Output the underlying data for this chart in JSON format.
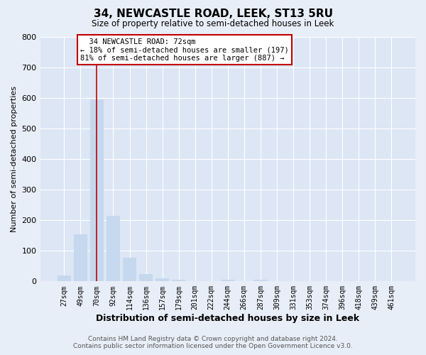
{
  "title": "34, NEWCASTLE ROAD, LEEK, ST13 5RU",
  "subtitle": "Size of property relative to semi-detached houses in Leek",
  "xlabel": "Distribution of semi-detached houses by size in Leek",
  "ylabel": "Number of semi-detached properties",
  "bar_labels": [
    "27sqm",
    "49sqm",
    "70sqm",
    "92sqm",
    "114sqm",
    "136sqm",
    "157sqm",
    "179sqm",
    "201sqm",
    "222sqm",
    "244sqm",
    "266sqm",
    "287sqm",
    "309sqm",
    "331sqm",
    "353sqm",
    "374sqm",
    "396sqm",
    "418sqm",
    "439sqm",
    "461sqm"
  ],
  "bar_values": [
    20,
    155,
    595,
    215,
    78,
    25,
    10,
    5,
    0,
    0,
    5,
    0,
    5,
    0,
    0,
    0,
    0,
    0,
    0,
    0,
    0
  ],
  "bar_color": "#c5d8ee",
  "highlight_color": "#c00000",
  "vline_index": 2,
  "annotation_title": "34 NEWCASTLE ROAD: 72sqm",
  "annotation_line1": "← 18% of semi-detached houses are smaller (197)",
  "annotation_line2": "81% of semi-detached houses are larger (887) →",
  "ylim": [
    0,
    800
  ],
  "yticks": [
    0,
    100,
    200,
    300,
    400,
    500,
    600,
    700,
    800
  ],
  "footer1": "Contains HM Land Registry data © Crown copyright and database right 2024.",
  "footer2": "Contains public sector information licensed under the Open Government Licence v3.0.",
  "bg_color": "#e8eef7",
  "plot_bg_color": "#dce6f5"
}
